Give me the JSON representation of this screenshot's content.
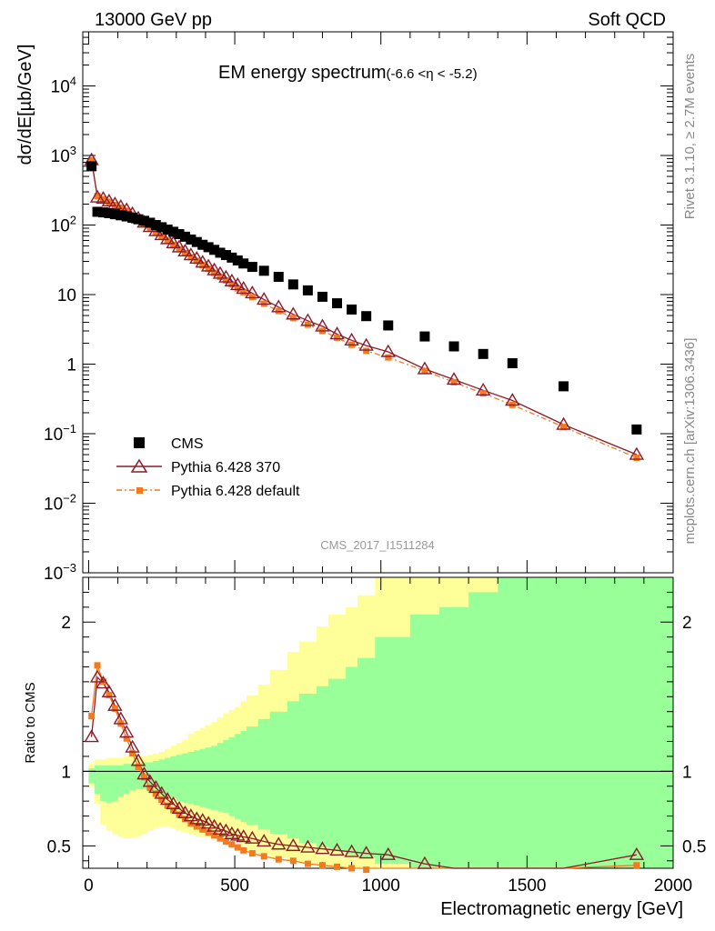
{
  "header": {
    "left": "13000 GeV pp",
    "right": "Soft QCD"
  },
  "side": {
    "rivet": "Rivet 3.1.10, ≥ 2.7M events",
    "mcplots": "mcplots.cern.ch [arXiv:1306.3436]"
  },
  "chart_data": [
    {
      "type": "scatter",
      "title": "EM energy spectrum",
      "title_sub": "(-6.6 <η < -5.2)",
      "ylabel": "dσ/dE[µb/GeV]",
      "xlabel": "",
      "yscale": "log",
      "ylim": [
        0.001,
        60000
      ],
      "xlim": [
        -20,
        2000
      ],
      "analysis": "CMS_2017_I1511284",
      "legend_position": "bottom-left",
      "series": [
        {
          "name": "CMS",
          "color": "#000000",
          "marker": "square",
          "x": [
            10,
            30,
            50,
            70,
            90,
            110,
            130,
            150,
            170,
            190,
            210,
            230,
            250,
            270,
            290,
            310,
            330,
            350,
            370,
            390,
            410,
            430,
            450,
            470,
            490,
            510,
            530,
            560,
            600,
            650,
            700,
            750,
            800,
            850,
            900,
            950,
            1025,
            1150,
            1250,
            1350,
            1450,
            1625,
            1875
          ],
          "y": [
            700,
            155,
            152,
            148,
            143,
            138,
            133,
            127,
            121,
            115,
            108,
            100,
            93,
            86,
            80,
            74,
            68,
            62,
            57,
            52,
            48,
            44,
            40,
            37,
            34,
            31,
            28,
            25,
            22,
            18,
            14,
            11.5,
            9.3,
            7.5,
            6.1,
            4.9,
            3.6,
            2.5,
            1.8,
            1.4,
            1.03,
            0.48,
            0.115
          ]
        },
        {
          "name": "Pythia 6.428 370",
          "color": "#8c1b2a",
          "marker": "open-triangle",
          "x": [
            10,
            30,
            50,
            70,
            90,
            110,
            130,
            150,
            170,
            190,
            210,
            230,
            250,
            270,
            290,
            310,
            330,
            350,
            370,
            390,
            410,
            430,
            450,
            470,
            490,
            510,
            530,
            560,
            600,
            650,
            700,
            750,
            800,
            850,
            900,
            950,
            1025,
            1150,
            1250,
            1350,
            1450,
            1625,
            1875
          ],
          "y": [
            860,
            250,
            240,
            220,
            200,
            183,
            165,
            145,
            125,
            109,
            94,
            82,
            72,
            63,
            55,
            48,
            42,
            37,
            33,
            29,
            25.5,
            22.5,
            20,
            17.7,
            15.6,
            13.8,
            12.2,
            10.5,
            8.5,
            6.6,
            5.2,
            4.2,
            3.5,
            2.7,
            2.2,
            1.85,
            1.5,
            0.85,
            0.6,
            0.42,
            0.3,
            0.135,
            0.05
          ]
        },
        {
          "name": "Pythia 6.428 default",
          "color": "#f47a20",
          "marker": "square-small",
          "x": [
            10,
            30,
            50,
            70,
            90,
            110,
            130,
            150,
            170,
            190,
            210,
            230,
            250,
            270,
            290,
            310,
            330,
            350,
            370,
            390,
            410,
            430,
            450,
            470,
            490,
            510,
            530,
            560,
            600,
            650,
            700,
            750,
            800,
            850,
            900,
            950,
            1025,
            1150,
            1250,
            1350,
            1450,
            1625,
            1875
          ],
          "y": [
            850,
            260,
            235,
            215,
            195,
            178,
            160,
            141,
            121,
            106,
            91,
            79,
            69,
            60,
            52,
            45,
            39.5,
            34.5,
            30.5,
            26.5,
            23.5,
            20.5,
            18,
            16,
            14,
            12.3,
            10.8,
            9.2,
            7.4,
            5.8,
            4.6,
            3.7,
            3.0,
            2.4,
            1.9,
            1.55,
            1.25,
            0.8,
            0.55,
            0.38,
            0.26,
            0.125,
            0.045
          ]
        }
      ]
    },
    {
      "type": "scatter",
      "title": "",
      "ylabel": "Ratio to CMS",
      "xlabel": "Electromagnetic energy [GeV]",
      "ylim": [
        0.35,
        2.3
      ],
      "xlim": [
        -20,
        2000
      ],
      "bands": [
        {
          "name": "",
          "color": "#ffff99",
          "edges": [
            0,
            20,
            40,
            60,
            80,
            100,
            120,
            140,
            160,
            180,
            200,
            220,
            240,
            260,
            280,
            300,
            320,
            340,
            360,
            380,
            400,
            420,
            440,
            460,
            480,
            500,
            520,
            540,
            580,
            620,
            680,
            720,
            780,
            820,
            880,
            920,
            980,
            1100,
            1200,
            1300,
            1400,
            1500,
            2000
          ],
          "lo": [
            0.9,
            0.78,
            0.64,
            0.6,
            0.58,
            0.56,
            0.55,
            0.55,
            0.56,
            0.58,
            0.6,
            0.62,
            0.63,
            0.63,
            0.62,
            0.6,
            0.59,
            0.58,
            0.57,
            0.56,
            0.56,
            0.55,
            0.55,
            0.54,
            0.54,
            0.53,
            0.5,
            0.47,
            0.44,
            0.42,
            0.4,
            0.38,
            0.36,
            0.34,
            0.32,
            0.3,
            0.3,
            0.3,
            0.3,
            0.3,
            0.3,
            0.3
          ],
          "hi": [
            1.05,
            1.08,
            1.08,
            1.09,
            1.09,
            1.09,
            1.1,
            1.1,
            1.1,
            1.1,
            1.11,
            1.12,
            1.13,
            1.15,
            1.17,
            1.19,
            1.21,
            1.25,
            1.27,
            1.29,
            1.31,
            1.33,
            1.36,
            1.39,
            1.41,
            1.43,
            1.47,
            1.51,
            1.58,
            1.68,
            1.8,
            1.87,
            1.97,
            2.05,
            2.1,
            2.18,
            2.35,
            2.35,
            2.35,
            2.35,
            2.35,
            2.35
          ]
        },
        {
          "name": "",
          "color": "#99ff99",
          "edges": [
            0,
            20,
            40,
            60,
            80,
            100,
            120,
            140,
            160,
            180,
            200,
            220,
            240,
            260,
            280,
            300,
            320,
            340,
            360,
            380,
            400,
            420,
            440,
            460,
            480,
            500,
            520,
            540,
            580,
            620,
            680,
            720,
            780,
            820,
            880,
            920,
            980,
            1100,
            1200,
            1300,
            1400,
            1500,
            2000
          ],
          "lo": [
            0.92,
            0.85,
            0.8,
            0.79,
            0.8,
            0.83,
            0.85,
            0.87,
            0.88,
            0.88,
            0.86,
            0.84,
            0.83,
            0.82,
            0.82,
            0.8,
            0.79,
            0.78,
            0.77,
            0.76,
            0.75,
            0.74,
            0.73,
            0.72,
            0.7,
            0.68,
            0.66,
            0.64,
            0.61,
            0.58,
            0.55,
            0.52,
            0.49,
            0.47,
            0.44,
            0.42,
            0.38,
            0.3,
            0.3,
            0.3,
            0.3,
            0.3
          ],
          "hi": [
            1.02,
            1.04,
            1.04,
            1.04,
            1.04,
            1.04,
            1.05,
            1.05,
            1.05,
            1.06,
            1.06,
            1.07,
            1.08,
            1.09,
            1.1,
            1.11,
            1.12,
            1.13,
            1.14,
            1.15,
            1.16,
            1.17,
            1.19,
            1.21,
            1.23,
            1.25,
            1.27,
            1.3,
            1.35,
            1.4,
            1.47,
            1.52,
            1.57,
            1.62,
            1.7,
            1.76,
            1.9,
            2.05,
            2.1,
            2.2,
            2.3,
            2.35
          ]
        }
      ],
      "series": [
        {
          "name": "Pythia 6.428 370",
          "color": "#8c1b2a",
          "marker": "open-triangle",
          "x": [
            10,
            30,
            50,
            70,
            90,
            110,
            130,
            150,
            170,
            190,
            210,
            230,
            250,
            270,
            290,
            310,
            330,
            350,
            370,
            390,
            410,
            430,
            450,
            470,
            490,
            510,
            530,
            560,
            600,
            650,
            700,
            750,
            800,
            850,
            900,
            950,
            1025,
            1150,
            1250,
            1350,
            1450,
            1625,
            1875
          ],
          "y": [
            1.23,
            1.63,
            1.59,
            1.53,
            1.44,
            1.35,
            1.26,
            1.16,
            1.07,
            0.98,
            0.93,
            0.89,
            0.85,
            0.81,
            0.78,
            0.75,
            0.72,
            0.7,
            0.68,
            0.67,
            0.65,
            0.63,
            0.61,
            0.6,
            0.58,
            0.57,
            0.56,
            0.55,
            0.53,
            0.51,
            0.5,
            0.49,
            0.48,
            0.47,
            0.46,
            0.45,
            0.44,
            0.38,
            0.33,
            0.3,
            0.27,
            0.28,
            0.44
          ]
        },
        {
          "name": "Pythia 6.428 default",
          "color": "#f47a20",
          "marker": "square-small",
          "x": [
            10,
            30,
            50,
            70,
            90,
            110,
            130,
            150,
            170,
            190,
            210,
            230,
            250,
            270,
            290,
            310,
            330,
            350,
            370,
            390,
            410,
            430,
            450,
            470,
            490,
            510,
            530,
            560,
            600,
            650,
            700,
            750,
            800,
            850,
            900,
            950,
            1025,
            1150,
            1250,
            1350,
            1450,
            1625,
            1875
          ],
          "y": [
            1.37,
            1.71,
            1.6,
            1.51,
            1.42,
            1.32,
            1.22,
            1.12,
            1.03,
            0.96,
            0.89,
            0.85,
            0.81,
            0.77,
            0.74,
            0.71,
            0.68,
            0.65,
            0.63,
            0.61,
            0.59,
            0.57,
            0.55,
            0.53,
            0.51,
            0.49,
            0.47,
            0.45,
            0.43,
            0.41,
            0.4,
            0.38,
            0.37,
            0.36,
            0.35,
            0.34,
            0.33,
            0.3,
            0.28,
            0.27,
            0.26,
            0.26,
            0.37
          ]
        }
      ]
    }
  ]
}
